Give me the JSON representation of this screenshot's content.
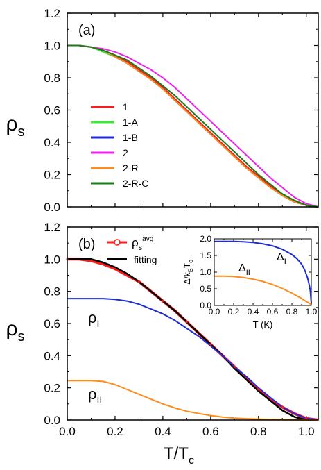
{
  "figure": {
    "x_axis_label": "T/T",
    "x_axis_label_sub": "c",
    "y_axis_label": "ρ",
    "y_axis_label_sub": "s"
  },
  "chart_data": [
    {
      "id": "a",
      "type": "line",
      "panel_label": "(a)",
      "xlim": [
        0.0,
        1.05
      ],
      "ylim": [
        0.0,
        1.2
      ],
      "xticks": [
        0.0,
        0.2,
        0.4,
        0.6,
        0.8,
        1.0
      ],
      "yticks": [
        0.0,
        0.2,
        0.4,
        0.6,
        0.8,
        1.0,
        1.2
      ],
      "xtick_labels": [],
      "ytick_labels": [
        "0.0",
        "0.2",
        "0.4",
        "0.6",
        "0.8",
        "1.0",
        "1.2"
      ],
      "legend_position": "middle-left",
      "x": [
        0.0,
        0.05,
        0.1,
        0.15,
        0.2,
        0.25,
        0.3,
        0.35,
        0.4,
        0.45,
        0.5,
        0.55,
        0.6,
        0.65,
        0.7,
        0.75,
        0.8,
        0.85,
        0.9,
        0.95,
        1.0,
        1.05
      ],
      "series": [
        {
          "name": "1",
          "color": "#ff1a1a",
          "values": [
            1.0,
            1.0,
            0.99,
            0.97,
            0.94,
            0.9,
            0.85,
            0.8,
            0.74,
            0.67,
            0.6,
            0.53,
            0.46,
            0.39,
            0.32,
            0.25,
            0.19,
            0.13,
            0.08,
            0.04,
            0.01,
            0.0
          ]
        },
        {
          "name": "1-A",
          "color": "#33ee33",
          "values": [
            1.0,
            1.0,
            0.99,
            0.96,
            0.93,
            0.89,
            0.84,
            0.79,
            0.73,
            0.66,
            0.59,
            0.52,
            0.45,
            0.38,
            0.31,
            0.24,
            0.18,
            0.12,
            0.07,
            0.03,
            0.01,
            0.0
          ]
        },
        {
          "name": "1-B",
          "color": "#1c2bd6",
          "values": [
            1.0,
            1.0,
            0.99,
            0.97,
            0.93,
            0.89,
            0.84,
            0.79,
            0.73,
            0.66,
            0.59,
            0.52,
            0.45,
            0.38,
            0.31,
            0.24,
            0.18,
            0.12,
            0.07,
            0.03,
            0.01,
            0.0
          ]
        },
        {
          "name": "2",
          "color": "#ee22ee",
          "values": [
            1.0,
            1.0,
            0.99,
            0.98,
            0.96,
            0.93,
            0.89,
            0.85,
            0.8,
            0.74,
            0.67,
            0.6,
            0.53,
            0.46,
            0.39,
            0.32,
            0.25,
            0.18,
            0.12,
            0.06,
            0.02,
            0.0
          ]
        },
        {
          "name": "2-R",
          "color": "#ff8c1a",
          "values": [
            1.0,
            1.0,
            0.99,
            0.97,
            0.93,
            0.89,
            0.84,
            0.79,
            0.73,
            0.66,
            0.59,
            0.52,
            0.45,
            0.38,
            0.31,
            0.24,
            0.18,
            0.12,
            0.07,
            0.03,
            0.01,
            0.0
          ]
        },
        {
          "name": "2-R-C",
          "color": "#1a7a1a",
          "values": [
            1.0,
            1.0,
            0.99,
            0.97,
            0.94,
            0.91,
            0.86,
            0.81,
            0.75,
            0.69,
            0.62,
            0.55,
            0.48,
            0.41,
            0.34,
            0.27,
            0.2,
            0.14,
            0.08,
            0.04,
            0.01,
            0.0
          ]
        }
      ]
    },
    {
      "id": "b",
      "type": "line",
      "panel_label": "(b)",
      "xlim": [
        0.0,
        1.05
      ],
      "ylim": [
        0.0,
        1.2
      ],
      "xticks": [
        0.0,
        0.2,
        0.4,
        0.6,
        0.8,
        1.0
      ],
      "yticks": [
        0.0,
        0.2,
        0.4,
        0.6,
        0.8,
        1.0,
        1.2
      ],
      "xtick_labels": [
        "0.0",
        "0.2",
        "0.4",
        "0.6",
        "0.8",
        "1.0"
      ],
      "ytick_labels": [
        "0.0",
        "0.2",
        "0.4",
        "0.6",
        "0.8",
        "1.0",
        "1.2"
      ],
      "legend_position": "top-left",
      "x": [
        0.0,
        0.05,
        0.1,
        0.15,
        0.2,
        0.25,
        0.3,
        0.35,
        0.4,
        0.45,
        0.5,
        0.55,
        0.6,
        0.65,
        0.7,
        0.75,
        0.8,
        0.85,
        0.9,
        0.95,
        1.0,
        1.05
      ],
      "series": [
        {
          "name": "ρ",
          "name_sub": "s",
          "name_sup": "avg",
          "color": "#ff1a1a",
          "marker": "open-circle",
          "width": 4,
          "values": [
            1.0,
            1.0,
            0.99,
            0.97,
            0.94,
            0.9,
            0.86,
            0.8,
            0.74,
            0.68,
            0.61,
            0.54,
            0.47,
            0.4,
            0.33,
            0.26,
            0.19,
            0.13,
            0.08,
            0.04,
            0.01,
            0.0
          ]
        },
        {
          "name": "fitting",
          "color": "#000000",
          "width": 2.5,
          "values": [
            1.0,
            1.0,
            1.0,
            0.98,
            0.95,
            0.91,
            0.86,
            0.8,
            0.74,
            0.68,
            0.61,
            0.54,
            0.47,
            0.4,
            0.32,
            0.25,
            0.18,
            0.12,
            0.06,
            0.02,
            0.0,
            0.0
          ]
        },
        {
          "name": "ρ",
          "name_sub": "I",
          "color": "#1c2bd6",
          "width": 2,
          "values": [
            0.755,
            0.755,
            0.755,
            0.755,
            0.75,
            0.74,
            0.72,
            0.69,
            0.66,
            0.62,
            0.57,
            0.52,
            0.46,
            0.4,
            0.33,
            0.27,
            0.2,
            0.14,
            0.08,
            0.04,
            0.01,
            0.0
          ]
        },
        {
          "name": "ρ",
          "name_sub": "II",
          "color": "#ff8c1a",
          "width": 2,
          "values": [
            0.245,
            0.245,
            0.245,
            0.24,
            0.22,
            0.19,
            0.16,
            0.13,
            0.1,
            0.075,
            0.055,
            0.04,
            0.028,
            0.018,
            0.012,
            0.008,
            0.005,
            0.003,
            0.002,
            0.001,
            0.0,
            0.0
          ]
        }
      ],
      "inset": {
        "type": "line",
        "xlabel": "T (K)",
        "ylabel": "Δ/k",
        "ylabel_sub1": "B",
        "ylabel_mid": "T",
        "ylabel_sub2": "c",
        "xlim": [
          0.0,
          1.0
        ],
        "ylim": [
          0.0,
          2.0
        ],
        "xticks": [
          0.0,
          0.1,
          0.2,
          0.3,
          0.4,
          0.5,
          0.6,
          0.7,
          0.8,
          0.9,
          1.0
        ],
        "yticks": [
          0.0,
          0.5,
          1.0,
          1.5,
          2.0
        ],
        "xtick_labels": [
          "0.0",
          "0.2",
          "0.4",
          "0.6",
          "0.8",
          "1.0"
        ],
        "ytick_labels": [
          "0.0",
          "0.5",
          "1.0",
          "1.5",
          "2.0"
        ],
        "x": [
          0.0,
          0.1,
          0.2,
          0.3,
          0.4,
          0.5,
          0.6,
          0.7,
          0.8,
          0.85,
          0.9,
          0.93,
          0.96,
          0.98,
          0.99,
          1.0
        ],
        "series": [
          {
            "name": "Δ",
            "name_sub": "I",
            "color": "#1c2bd6",
            "values": [
              1.92,
              1.92,
              1.92,
              1.91,
              1.89,
              1.85,
              1.79,
              1.69,
              1.53,
              1.41,
              1.24,
              1.08,
              0.84,
              0.6,
              0.42,
              0.05
            ]
          },
          {
            "name": "Δ",
            "name_sub": "II",
            "color": "#ff8c1a",
            "values": [
              0.88,
              0.88,
              0.87,
              0.84,
              0.79,
              0.72,
              0.63,
              0.51,
              0.37,
              0.29,
              0.21,
              0.15,
              0.1,
              0.06,
              0.04,
              0.0
            ]
          }
        ]
      }
    }
  ]
}
